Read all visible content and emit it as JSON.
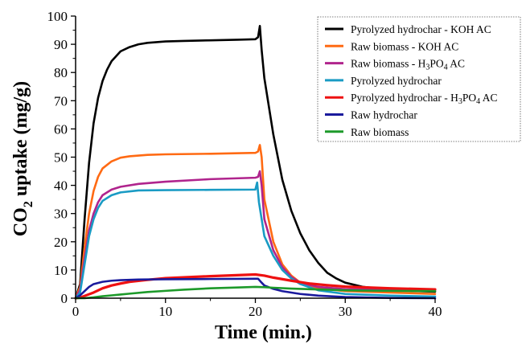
{
  "chart_data": {
    "type": "line",
    "title": "",
    "xlabel": "Time (min.)",
    "ylabel": {
      "prefix": "CO",
      "sub": "2",
      "suffix": " uptake (mg/g)"
    },
    "xlim": [
      0,
      40
    ],
    "ylim": [
      0,
      100
    ],
    "x_ticks": [
      0,
      10,
      20,
      30,
      40
    ],
    "y_ticks": [
      0,
      10,
      20,
      30,
      40,
      50,
      60,
      70,
      80,
      90,
      100
    ],
    "grid": false,
    "legend_position": "top-right",
    "series": [
      {
        "name": "Pyrolyzed hydrochar - KOH AC",
        "name_parts": [
          "Pyrolyzed hydrochar - KOH AC"
        ],
        "color": "#000000",
        "points": [
          [
            0,
            0
          ],
          [
            0.5,
            5
          ],
          [
            1,
            28
          ],
          [
            1.5,
            48
          ],
          [
            2,
            62
          ],
          [
            2.5,
            71
          ],
          [
            3,
            77
          ],
          [
            3.5,
            81
          ],
          [
            4,
            84
          ],
          [
            5,
            87.5
          ],
          [
            6,
            89
          ],
          [
            7,
            90
          ],
          [
            8,
            90.5
          ],
          [
            10,
            91
          ],
          [
            12,
            91.2
          ],
          [
            15,
            91.4
          ],
          [
            18,
            91.6
          ],
          [
            20,
            91.8
          ],
          [
            20.3,
            92.5
          ],
          [
            20.5,
            96.5
          ],
          [
            20.7,
            88
          ],
          [
            21,
            78
          ],
          [
            22,
            58
          ],
          [
            23,
            42
          ],
          [
            24,
            31
          ],
          [
            25,
            23
          ],
          [
            26,
            17
          ],
          [
            27,
            12.5
          ],
          [
            28,
            9
          ],
          [
            29,
            7
          ],
          [
            30,
            5.5
          ],
          [
            32,
            4
          ],
          [
            35,
            3
          ],
          [
            38,
            2.5
          ],
          [
            40,
            2.3
          ]
        ]
      },
      {
        "name": "Raw biomass - KOH AC",
        "name_parts": [
          "Raw biomass - KOH AC"
        ],
        "color": "#ff6a13",
        "points": [
          [
            0,
            0
          ],
          [
            0.5,
            4
          ],
          [
            1,
            18
          ],
          [
            1.5,
            30
          ],
          [
            2,
            38
          ],
          [
            2.5,
            43
          ],
          [
            3,
            46
          ],
          [
            4,
            48.5
          ],
          [
            5,
            49.8
          ],
          [
            6,
            50.3
          ],
          [
            8,
            50.8
          ],
          [
            10,
            51
          ],
          [
            15,
            51.2
          ],
          [
            20,
            51.5
          ],
          [
            20.3,
            52
          ],
          [
            20.5,
            54.3
          ],
          [
            20.7,
            50
          ],
          [
            21,
            35
          ],
          [
            22,
            20
          ],
          [
            23,
            12
          ],
          [
            24,
            8
          ],
          [
            25,
            5.5
          ],
          [
            27,
            3.5
          ],
          [
            30,
            2.5
          ],
          [
            35,
            2
          ],
          [
            40,
            1.5
          ]
        ]
      },
      {
        "name": "Raw biomass - H3PO4 AC",
        "name_parts": [
          "Raw biomass - H",
          "3",
          "PO",
          "4",
          " AC"
        ],
        "color": "#b0248d",
        "points": [
          [
            0,
            0
          ],
          [
            0.5,
            3
          ],
          [
            1,
            14
          ],
          [
            1.5,
            24
          ],
          [
            2,
            30
          ],
          [
            2.5,
            34
          ],
          [
            3,
            36.5
          ],
          [
            4,
            38.5
          ],
          [
            5,
            39.5
          ],
          [
            7,
            40.5
          ],
          [
            10,
            41.3
          ],
          [
            15,
            42.2
          ],
          [
            20,
            42.7
          ],
          [
            20.3,
            43
          ],
          [
            20.5,
            45
          ],
          [
            20.7,
            40
          ],
          [
            21,
            28
          ],
          [
            22,
            17
          ],
          [
            23,
            11
          ],
          [
            24,
            7.5
          ],
          [
            25,
            5.5
          ],
          [
            27,
            4
          ],
          [
            30,
            3.2
          ],
          [
            35,
            3
          ],
          [
            40,
            2.8
          ]
        ]
      },
      {
        "name": "Pyrolyzed hydrochar",
        "name_parts": [
          "Pyrolyzed hydrochar"
        ],
        "color": "#1a9bc4",
        "points": [
          [
            0,
            0
          ],
          [
            0.5,
            2
          ],
          [
            1,
            12
          ],
          [
            1.5,
            22
          ],
          [
            2,
            28
          ],
          [
            2.5,
            32
          ],
          [
            3,
            34.5
          ],
          [
            4,
            36.5
          ],
          [
            5,
            37.5
          ],
          [
            7,
            38.2
          ],
          [
            10,
            38.3
          ],
          [
            15,
            38.4
          ],
          [
            20,
            38.5
          ],
          [
            20.2,
            41
          ],
          [
            20.4,
            34
          ],
          [
            20.7,
            28
          ],
          [
            21,
            22
          ],
          [
            22,
            15
          ],
          [
            23,
            10
          ],
          [
            24,
            7
          ],
          [
            25,
            5
          ],
          [
            27,
            2.8
          ],
          [
            30,
            1.5
          ],
          [
            35,
            0.9
          ],
          [
            40,
            0.6
          ]
        ]
      },
      {
        "name": "Pyrolyzed hydrochar - H3PO4 AC",
        "name_parts": [
          "Pyrolyzed hydrochar - H",
          "3",
          "PO",
          "4",
          " AC"
        ],
        "color": "#ee1111",
        "points": [
          [
            0,
            0
          ],
          [
            0.5,
            0.2
          ],
          [
            1,
            0.8
          ],
          [
            2,
            2
          ],
          [
            3,
            3.5
          ],
          [
            4,
            4.5
          ],
          [
            5,
            5.2
          ],
          [
            6,
            5.8
          ],
          [
            8,
            6.5
          ],
          [
            10,
            7.1
          ],
          [
            15,
            7.8
          ],
          [
            20,
            8.4
          ],
          [
            21,
            8
          ],
          [
            22,
            7.3
          ],
          [
            24,
            6.2
          ],
          [
            26,
            5.2
          ],
          [
            28,
            4.6
          ],
          [
            30,
            4.1
          ],
          [
            35,
            3.5
          ],
          [
            40,
            3.1
          ]
        ]
      },
      {
        "name": "Raw hydrochar",
        "name_parts": [
          "Raw hydrochar"
        ],
        "color": "#1a1a9c",
        "points": [
          [
            0,
            0
          ],
          [
            0.5,
            1
          ],
          [
            1,
            2.5
          ],
          [
            1.5,
            4
          ],
          [
            2,
            5
          ],
          [
            3,
            5.8
          ],
          [
            4,
            6.2
          ],
          [
            5,
            6.4
          ],
          [
            7,
            6.6
          ],
          [
            10,
            6.7
          ],
          [
            15,
            6.8
          ],
          [
            20,
            6.9
          ],
          [
            20.3,
            6.9
          ],
          [
            20.7,
            5.5
          ],
          [
            21,
            4.5
          ],
          [
            22,
            3.3
          ],
          [
            23,
            2.5
          ],
          [
            25,
            1.5
          ],
          [
            27,
            0.9
          ],
          [
            30,
            0.4
          ],
          [
            35,
            0.1
          ],
          [
            40,
            0
          ]
        ]
      },
      {
        "name": "Raw biomass",
        "name_parts": [
          "Raw biomass"
        ],
        "color": "#1d9a2a",
        "points": [
          [
            0,
            0
          ],
          [
            1,
            0
          ],
          [
            2,
            0.3
          ],
          [
            3,
            0.7
          ],
          [
            4,
            1
          ],
          [
            5,
            1.3
          ],
          [
            6,
            1.6
          ],
          [
            8,
            2.2
          ],
          [
            10,
            2.6
          ],
          [
            12,
            3
          ],
          [
            15,
            3.5
          ],
          [
            18,
            3.8
          ],
          [
            20,
            4
          ],
          [
            21,
            3.9
          ],
          [
            22,
            3.7
          ],
          [
            24,
            3.4
          ],
          [
            26,
            3.2
          ],
          [
            28,
            3
          ],
          [
            30,
            2.8
          ],
          [
            35,
            2.6
          ],
          [
            40,
            2.5
          ]
        ]
      }
    ]
  }
}
